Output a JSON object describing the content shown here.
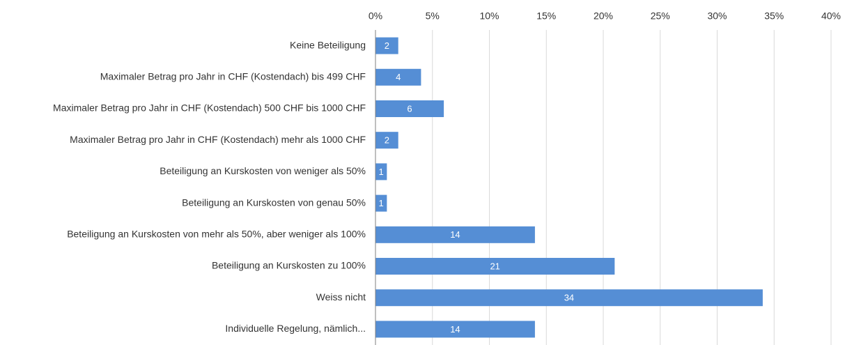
{
  "chart_data": {
    "type": "bar",
    "orientation": "horizontal",
    "categories": [
      "Keine Beteiligung",
      "Maximaler Betrag pro Jahr in CHF (Kostendach) bis 499 CHF",
      "Maximaler Betrag pro Jahr in CHF (Kostendach) 500 CHF bis 1000 CHF",
      "Maximaler Betrag pro Jahr in CHF (Kostendach) mehr als 1000 CHF",
      "Beteiligung an Kurskosten von weniger als 50%",
      "Beteiligung an Kurskosten von genau 50%",
      "Beteiligung an Kurskosten von mehr als 50%, aber weniger als 100%",
      "Beteiligung an Kurskosten zu 100%",
      "Weiss nicht",
      "Individuelle Regelung, nämlich..."
    ],
    "values": [
      2,
      4,
      6,
      2,
      1,
      1,
      14,
      21,
      34,
      14
    ],
    "color": "#558ed5",
    "xlim": [
      0,
      40
    ],
    "xticks": [
      {
        "value": 0,
        "label": "0%"
      },
      {
        "value": 5,
        "label": "5%"
      },
      {
        "value": 10,
        "label": "10%"
      },
      {
        "value": 15,
        "label": "15%"
      },
      {
        "value": 20,
        "label": "20%"
      },
      {
        "value": 25,
        "label": "25%"
      },
      {
        "value": 30,
        "label": "30%"
      },
      {
        "value": 35,
        "label": "35%"
      },
      {
        "value": 40,
        "label": "40%"
      }
    ],
    "grid": true
  }
}
